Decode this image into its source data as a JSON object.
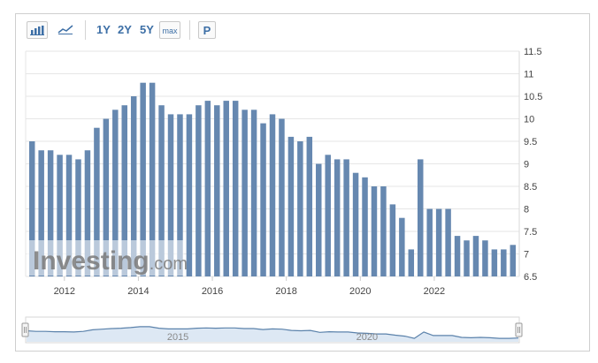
{
  "toolbar": {
    "bar_chart_icon": "bar-chart-icon",
    "line_chart_icon": "line-chart-icon",
    "range_1y": "1Y",
    "range_2y": "2Y",
    "range_5y": "5Y",
    "range_max": "max",
    "print_label": "P"
  },
  "watermark": {
    "brand_text": "Investing",
    "brand_suffix": ".com"
  },
  "colors": {
    "bar": "#6688b0",
    "accent": "#3d6fa6",
    "grid": "#e6e6e6",
    "navigator_line": "#5b82ab",
    "navigator_fill": "#dde8f4"
  },
  "chart_data": {
    "type": "bar",
    "x_tick_labels": [
      "2012",
      "2014",
      "2016",
      "2018",
      "2020",
      "2022"
    ],
    "y_ticks": [
      6.5,
      7,
      7.5,
      8,
      8.5,
      9,
      9.5,
      10,
      10.5,
      11,
      11.5
    ],
    "ylim": [
      6.5,
      11.5
    ],
    "y_axis_side": "right",
    "grid": true,
    "series": [
      {
        "values": [
          9.5,
          9.3,
          9.3,
          9.2,
          9.2,
          9.1,
          9.3,
          9.8,
          10.0,
          10.2,
          10.3,
          10.5,
          10.8,
          10.8,
          10.3,
          10.1,
          10.1,
          10.1,
          10.3,
          10.4,
          10.3,
          10.4,
          10.4,
          10.2,
          10.2,
          9.9,
          10.1,
          10.0,
          9.6,
          9.5,
          9.6,
          9.0,
          9.2,
          9.1,
          9.1,
          8.8,
          8.7,
          8.5,
          8.5,
          8.1,
          7.8,
          7.1,
          9.1,
          8.0,
          8.0,
          8.0,
          7.4,
          7.3,
          7.4,
          7.3,
          7.1,
          7.1,
          7.2
        ]
      }
    ],
    "navigator": {
      "year_labels": [
        "2015",
        "2020"
      ]
    }
  }
}
